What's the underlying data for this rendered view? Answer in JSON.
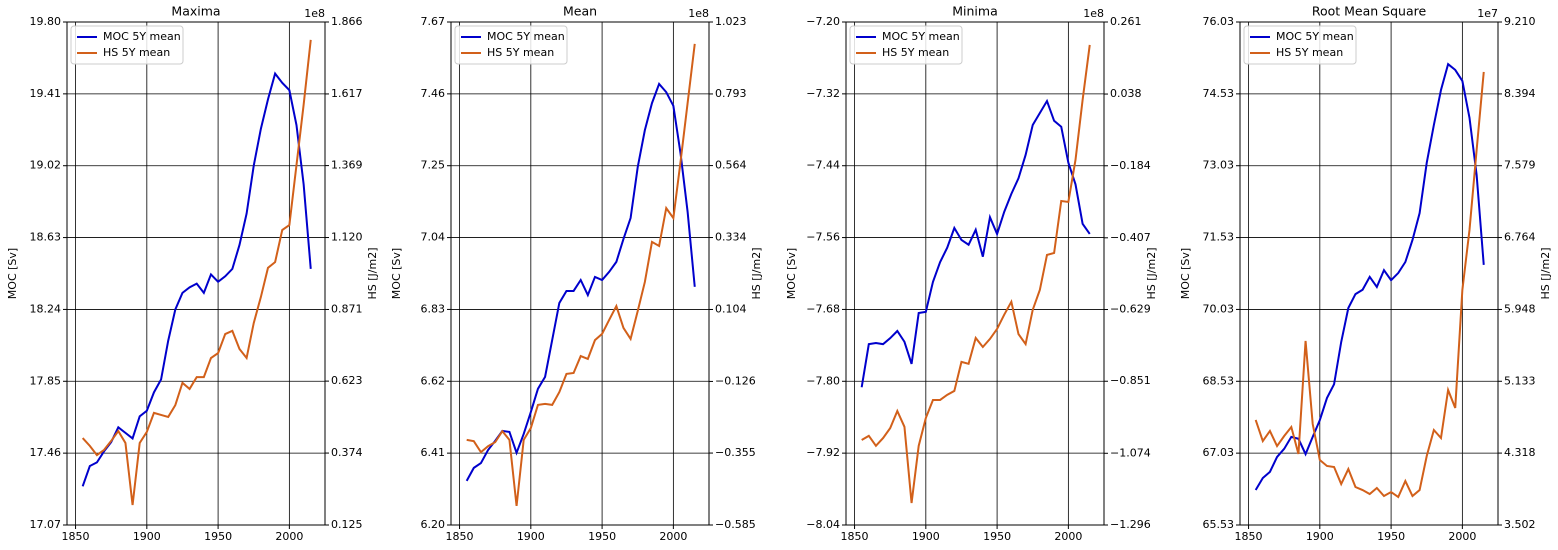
{
  "chart_data": [
    {
      "type": "line",
      "title": "Maxima",
      "ylabel": "MOC [Sv]",
      "y2label": "HS [J/m2]",
      "y2_offset": "1e8",
      "legend": "upper left",
      "grid": true,
      "x": [
        1855,
        1860,
        1865,
        1870,
        1875,
        1880,
        1885,
        1890,
        1895,
        1900,
        1905,
        1910,
        1915,
        1920,
        1925,
        1930,
        1935,
        1940,
        1945,
        1950,
        1955,
        1960,
        1965,
        1970,
        1975,
        1980,
        1985,
        1990,
        1995,
        2000,
        2005,
        2010,
        2015
      ],
      "xlim": [
        1844,
        2025
      ],
      "xticks": [
        1850,
        1900,
        1950,
        2000
      ],
      "ylim": [
        17.07,
        19.8
      ],
      "yticks": [
        17.07,
        17.46,
        17.85,
        18.24,
        18.63,
        19.02,
        19.41,
        {
          "value": 19.8,
          "label": "19.80"
        }
      ],
      "y2lim": [
        0.125,
        1.866
      ],
      "y2ticks": [
        0.125,
        0.374,
        0.623,
        0.871,
        {
          "value": 1.12,
          "label": "1.120"
        },
        1.369,
        1.617,
        1.866
      ],
      "series": [
        {
          "name": "MOC 5Y mean",
          "color": "#0000cc",
          "values": [
            17.28,
            17.39,
            17.41,
            17.47,
            17.52,
            17.6,
            17.57,
            17.54,
            17.66,
            17.69,
            17.79,
            17.86,
            18.07,
            18.24,
            18.33,
            18.36,
            18.38,
            18.33,
            18.43,
            18.39,
            18.42,
            18.46,
            18.59,
            18.76,
            19.02,
            19.22,
            19.38,
            19.52,
            19.47,
            19.43,
            19.24,
            18.92,
            18.46
          ]
        },
        {
          "name": "HS 5Y mean",
          "color": "#d2601a",
          "axis": "y2",
          "values": [
            0.426,
            0.399,
            0.367,
            0.385,
            0.416,
            0.45,
            0.409,
            0.194,
            0.409,
            0.447,
            0.513,
            0.506,
            0.499,
            0.54,
            0.617,
            0.596,
            0.637,
            0.637,
            0.703,
            0.72,
            0.786,
            0.797,
            0.734,
            0.703,
            0.824,
            0.914,
            1.015,
            1.035,
            1.146,
            1.163,
            1.371,
            1.579,
            1.804
          ]
        }
      ]
    },
    {
      "type": "line",
      "title": "Mean",
      "ylabel": "MOC [Sv]",
      "y2label": "HS [J/m2]",
      "y2_offset": "1e8",
      "legend": "upper left",
      "grid": true,
      "x": [
        1855,
        1860,
        1865,
        1870,
        1875,
        1880,
        1885,
        1890,
        1895,
        1900,
        1905,
        1910,
        1915,
        1920,
        1925,
        1930,
        1935,
        1940,
        1945,
        1950,
        1955,
        1960,
        1965,
        1970,
        1975,
        1980,
        1985,
        1990,
        1995,
        2000,
        2005,
        2010,
        2015
      ],
      "xlim": [
        1844,
        2025
      ],
      "xticks": [
        1850,
        1900,
        1950,
        2000
      ],
      "ylim": [
        6.2,
        7.67
      ],
      "yticks": [
        {
          "value": 6.2,
          "label": "6.20"
        },
        6.41,
        6.62,
        6.83,
        7.04,
        7.25,
        7.46,
        7.67
      ],
      "y2lim": [
        -0.585,
        1.023
      ],
      "y2ticks": [
        {
          "value": -0.585,
          "label": "−0.585"
        },
        {
          "value": -0.355,
          "label": "−0.355"
        },
        {
          "value": -0.126,
          "label": "−0.126"
        },
        0.104,
        0.334,
        0.564,
        0.793,
        1.023
      ],
      "series": [
        {
          "name": "MOC 5Y mean",
          "color": "#0000cc",
          "values": [
            6.329,
            6.367,
            6.381,
            6.419,
            6.446,
            6.475,
            6.472,
            6.411,
            6.466,
            6.53,
            6.598,
            6.633,
            6.741,
            6.849,
            6.884,
            6.884,
            6.916,
            6.872,
            6.925,
            6.916,
            6.94,
            6.969,
            7.036,
            7.097,
            7.246,
            7.354,
            7.433,
            7.489,
            7.465,
            7.425,
            7.287,
            7.115,
            6.896
          ]
        },
        {
          "name": "HS 5Y mean",
          "color": "#d2601a",
          "axis": "y2",
          "values": [
            -0.313,
            -0.317,
            -0.352,
            -0.333,
            -0.32,
            -0.285,
            -0.313,
            -0.524,
            -0.313,
            -0.275,
            -0.201,
            -0.198,
            -0.201,
            -0.16,
            -0.102,
            -0.099,
            -0.045,
            -0.054,
            0.006,
            0.026,
            0.071,
            0.115,
            0.045,
            0.01,
            0.099,
            0.192,
            0.32,
            0.307,
            0.428,
            0.396,
            0.575,
            0.764,
            0.953
          ]
        }
      ]
    },
    {
      "type": "line",
      "title": "Minima",
      "ylabel": "MOC [Sv]",
      "y2label": "HS [J/m2]",
      "y2_offset": "1e8",
      "legend": "upper left",
      "grid": true,
      "x": [
        1855,
        1860,
        1865,
        1870,
        1875,
        1880,
        1885,
        1890,
        1895,
        1900,
        1905,
        1910,
        1915,
        1920,
        1925,
        1930,
        1935,
        1940,
        1945,
        1950,
        1955,
        1960,
        1965,
        1970,
        1975,
        1980,
        1985,
        1990,
        1995,
        2000,
        2005,
        2010,
        2015
      ],
      "xlim": [
        1844,
        2025
      ],
      "xticks": [
        1850,
        1900,
        1950,
        2000
      ],
      "ylim": [
        -8.04,
        -7.2
      ],
      "yticks": [
        {
          "value": -8.04,
          "label": "−8.04"
        },
        {
          "value": -7.92,
          "label": "−7.92"
        },
        {
          "value": -7.8,
          "label": "−7.80"
        },
        {
          "value": -7.68,
          "label": "−7.68"
        },
        {
          "value": -7.56,
          "label": "−7.56"
        },
        {
          "value": -7.44,
          "label": "−7.44"
        },
        {
          "value": -7.32,
          "label": "−7.32"
        },
        {
          "value": -7.2,
          "label": "−7.20"
        }
      ],
      "y2lim": [
        -1.296,
        0.261
      ],
      "y2ticks": [
        {
          "value": -1.296,
          "label": "−1.296"
        },
        {
          "value": -1.074,
          "label": "−1.074"
        },
        {
          "value": -0.851,
          "label": "−0.851"
        },
        {
          "value": -0.629,
          "label": "−0.629"
        },
        {
          "value": -0.407,
          "label": "−0.407"
        },
        {
          "value": -0.184,
          "label": "−0.184"
        },
        0.038,
        0.261
      ],
      "series": [
        {
          "name": "MOC 5Y mean",
          "color": "#0000cc",
          "values": [
            -7.81,
            -7.738,
            -7.736,
            -7.738,
            -7.728,
            -7.716,
            -7.734,
            -7.771,
            -7.686,
            -7.684,
            -7.634,
            -7.601,
            -7.577,
            -7.544,
            -7.564,
            -7.572,
            -7.547,
            -7.592,
            -7.526,
            -7.554,
            -7.517,
            -7.487,
            -7.461,
            -7.422,
            -7.372,
            -7.352,
            -7.332,
            -7.365,
            -7.375,
            -7.435,
            -7.471,
            -7.537,
            -7.554
          ]
        },
        {
          "name": "HS 5Y mean",
          "color": "#d2601a",
          "axis": "y2",
          "values": [
            -1.033,
            -1.02,
            -1.051,
            -1.027,
            -0.996,
            -0.943,
            -0.992,
            -1.228,
            -1.051,
            -0.965,
            -0.909,
            -0.909,
            -0.893,
            -0.881,
            -0.791,
            -0.797,
            -0.717,
            -0.745,
            -0.72,
            -0.689,
            -0.645,
            -0.605,
            -0.705,
            -0.736,
            -0.63,
            -0.568,
            -0.46,
            -0.454,
            -0.293,
            -0.296,
            -0.166,
            0.02,
            0.19
          ]
        }
      ]
    },
    {
      "type": "line",
      "title": "Root Mean Square",
      "ylabel": "MOC [Sv]",
      "y2label": "HS [J/m2]",
      "y2_offset": "1e7",
      "legend": "upper left",
      "grid": true,
      "x": [
        1855,
        1860,
        1865,
        1870,
        1875,
        1880,
        1885,
        1890,
        1895,
        1900,
        1905,
        1910,
        1915,
        1920,
        1925,
        1930,
        1935,
        1940,
        1945,
        1950,
        1955,
        1960,
        1965,
        1970,
        1975,
        1980,
        1985,
        1990,
        1995,
        2000,
        2005,
        2010,
        2015
      ],
      "xlim": [
        1844,
        2025
      ],
      "xticks": [
        1850,
        1900,
        1950,
        2000
      ],
      "ylim": [
        65.53,
        76.03
      ],
      "yticks": [
        65.53,
        67.03,
        68.53,
        70.03,
        71.53,
        73.03,
        74.53,
        76.03
      ],
      "y2lim": [
        3.502,
        9.21
      ],
      "y2ticks": [
        3.502,
        4.318,
        5.133,
        5.948,
        6.764,
        7.579,
        8.394,
        {
          "value": 9.21,
          "label": "9.210"
        }
      ],
      "series": [
        {
          "name": "MOC 5Y mean",
          "color": "#0000cc",
          "values": [
            66.26,
            66.51,
            66.64,
            66.95,
            67.12,
            67.37,
            67.33,
            67.01,
            67.37,
            67.72,
            68.18,
            68.47,
            69.35,
            70.06,
            70.35,
            70.44,
            70.71,
            70.5,
            70.85,
            70.64,
            70.79,
            71.02,
            71.48,
            72.04,
            73.09,
            73.88,
            74.61,
            75.15,
            75.03,
            74.8,
            74.03,
            72.84,
            70.96
          ]
        },
        {
          "name": "HS 5Y mean",
          "color": "#d2601a",
          "axis": "y2",
          "values": [
            4.694,
            4.455,
            4.569,
            4.398,
            4.512,
            4.614,
            4.308,
            5.59,
            4.648,
            4.24,
            4.172,
            4.16,
            3.967,
            4.137,
            3.933,
            3.899,
            3.854,
            3.922,
            3.831,
            3.876,
            3.82,
            4.001,
            3.831,
            3.899,
            4.285,
            4.58,
            4.489,
            5.034,
            4.83,
            6.169,
            6.85,
            7.757,
            8.643
          ]
        }
      ]
    }
  ]
}
